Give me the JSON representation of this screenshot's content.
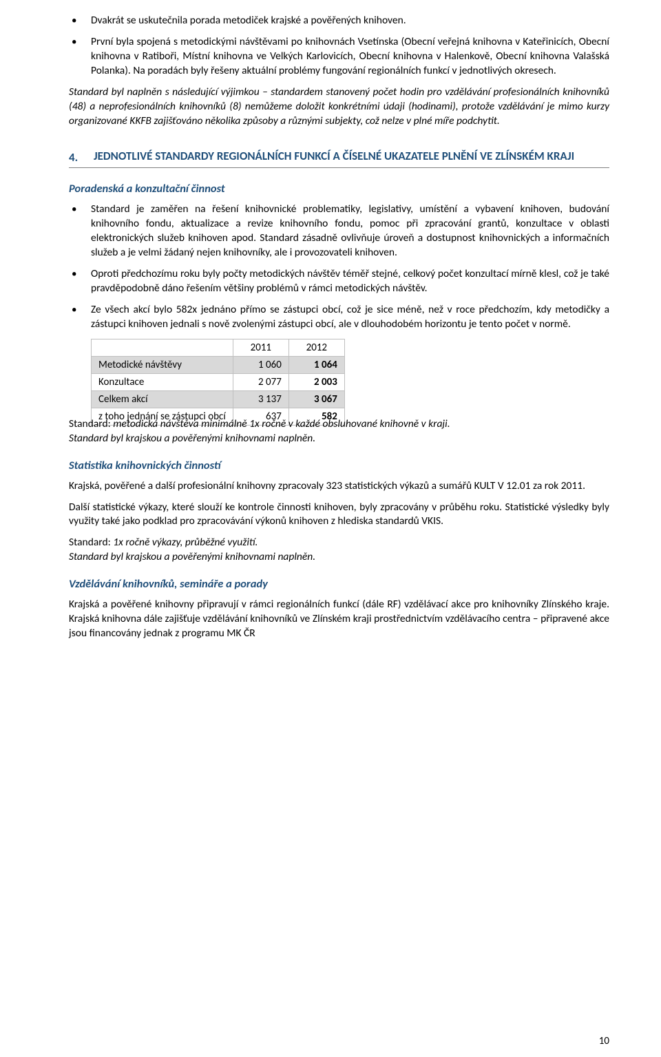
{
  "intro_bullets": [
    "Dvakrát se uskutečnila porada metodiček krajské a pověřených knihoven.",
    "První byla spojená s metodickými návštěvami po knihovnách Vsetínska (Obecní veřejná knihovna v Kateřinicích, Obecní knihovna v Ratiboři, Místní knihovna ve Velkých Karlovicích, Obecní knihovna v Halenkově, Obecní knihovna Valašská Polanka). Na poradách byly řešeny aktuální problémy fungování regionálních funkcí v jednotlivých okresech."
  ],
  "intro_italic": "Standard byl naplněn s následující výjimkou – standardem stanovený počet hodin pro vzdělávání profesionálních knihovníků (48) a neprofesionálních knihovníků (8) nemůžeme doložit konkrétními údaji (hodinami), protože vzdělávání je mimo kurzy organizované KKFB zajišťováno několika způsoby a různými subjekty, což nelze v plné míře podchytit.",
  "section4": {
    "num": "4.",
    "title": "JEDNOTLIVÉ STANDARDY REGIONÁLNÍCH FUNKCÍ A ČÍSELNÉ UKAZATELE PLNĚNÍ VE ZLÍNSKÉM KRAJI",
    "sub1": {
      "heading": "Poradenská a konzultační činnost",
      "bullets": [
        "Standard je zaměřen na řešení knihovnické problematiky, legislativy, umístění a vybavení knihoven, budování knihovního fondu, aktualizace a revize knihovního fondu, pomoc při zpracování grantů, konzultace v oblasti elektronických služeb knihoven apod. Standard zásadně ovlivňuje úroveň a dostupnost knihovnických a informačních služeb a je velmi žádaný nejen knihovníky, ale i provozovateli knihoven.",
        "Oproti předchozímu roku byly počty metodických návštěv téměř stejné, celkový počet konzultací mírně klesl, což je také pravděpodobně dáno řešením většiny problémů v rámci metodických návštěv.",
        "Ze všech akcí bylo 582x jednáno přímo se zástupci obcí, což je sice méně, než v roce předchozím, kdy metodičky a zástupci knihoven jednali s nově zvolenými zástupci obcí, ale v dlouhodobém horizontu je tento počet v normě."
      ],
      "table": {
        "columns": [
          "",
          "2011",
          "2012"
        ],
        "rows": [
          {
            "label": "Metodické návštěvy",
            "y2011": "1 060",
            "y2012": "1 064",
            "shaded": true
          },
          {
            "label": "Konzultace",
            "y2011": "2 077",
            "y2012": "2 003",
            "shaded": false
          },
          {
            "label": "Celkem akcí",
            "y2011": "3 137",
            "y2012": "3 067",
            "shaded": true
          },
          {
            "label": "z toho jednání se zástupci obcí",
            "y2011": "637",
            "y2012": "582",
            "shaded": false
          }
        ]
      },
      "standard_line": "Standard: metodická návštěva minimálně 1x ročně v každé obsluhované knihovně v kraji.",
      "standard_met": "Standard byl krajskou a pověřenými knihovnami naplněn."
    },
    "sub2": {
      "heading": "Statistika knihovnických činností",
      "p1": "Krajská, pověřené a další profesionální knihovny zpracovaly 323 statistických výkazů a sumářů KULT V 12.01 za rok 2011.",
      "p2": "Další statistické výkazy, které slouží ke kontrole činnosti knihoven, byly zpracovány v průběhu roku. Statistické výsledky byly využity také jako podklad pro zpracovávání výkonů knihoven z hlediska standardů VKIS.",
      "standard_line": "Standard: 1x ročně výkazy, průběžné využití.",
      "standard_met": "Standard byl krajskou a pověřenými knihovnami naplněn."
    },
    "sub3": {
      "heading": "Vzdělávání knihovníků, semináře a porady",
      "p1": "Krajská a pověřené knihovny připravují v rámci regionálních funkcí (dále RF) vzdělávací akce pro knihovníky Zlínského kraje. Krajská knihovna dále zajišťuje vzdělávání knihovníků ve Zlínském kraji prostřednictvím vzdělávacího centra – připravené akce jsou financovány jednak z programu MK ČR"
    }
  },
  "page_number": "10"
}
